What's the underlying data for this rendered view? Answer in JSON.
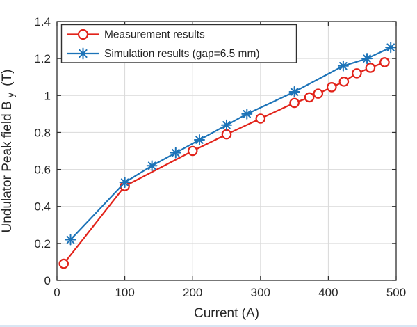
{
  "figure": {
    "background": "#ffffff",
    "bottom_strip_color": "#d9e6f3"
  },
  "chart_data": {
    "type": "line",
    "title": "",
    "xlabel": "Current (A)",
    "ylabel": {
      "main": "Undulator Peak field B",
      "sub": "y",
      "unit": "(T)"
    },
    "xlim": [
      0,
      500
    ],
    "ylim": [
      0,
      1.4
    ],
    "x_ticks": [
      0,
      100,
      200,
      300,
      400,
      500
    ],
    "x_tick_labels": [
      "0",
      "100",
      "200",
      "300",
      "400",
      "500"
    ],
    "y_ticks": [
      0,
      0.2,
      0.4,
      0.6,
      0.8,
      1.0,
      1.2,
      1.4
    ],
    "y_tick_labels": [
      "0",
      "0.2",
      "0.4",
      "0.6",
      "0.8",
      "1",
      "1.2",
      "1.4"
    ],
    "grid": true,
    "legend_position": "top-left",
    "colors": {
      "grid": "#d9d9d9",
      "axis": "#2e2e2e",
      "text": "#262626",
      "legend_border": "#303030"
    },
    "series": [
      {
        "name": "Measurement results",
        "color": "#e2231a",
        "marker": "circle",
        "x": [
          10,
          100,
          200,
          250,
          300,
          350,
          372,
          385,
          405,
          423,
          442,
          462,
          483
        ],
        "y": [
          0.09,
          0.51,
          0.7,
          0.79,
          0.875,
          0.96,
          0.99,
          1.01,
          1.045,
          1.075,
          1.12,
          1.15,
          1.18
        ]
      },
      {
        "name": "Simulation results (gap=6.5 mm)",
        "color": "#1c73b8",
        "marker": "asterisk",
        "x": [
          20,
          100,
          140,
          175,
          210,
          250,
          280,
          350,
          422,
          457,
          492
        ],
        "y": [
          0.22,
          0.53,
          0.62,
          0.69,
          0.76,
          0.84,
          0.9,
          1.02,
          1.16,
          1.2,
          1.26
        ]
      }
    ]
  }
}
